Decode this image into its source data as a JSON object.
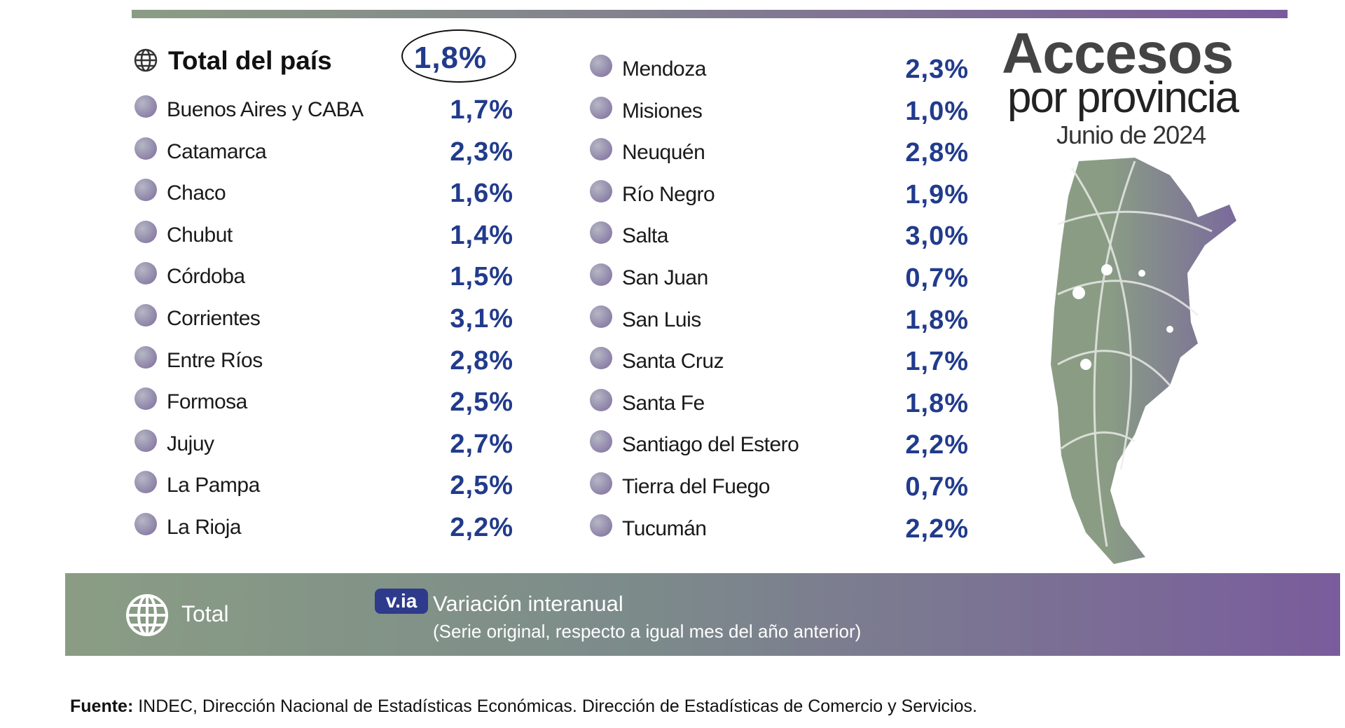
{
  "header": {
    "title": "Accesos",
    "subtitle": "por provincia",
    "date": "Junio de 2024"
  },
  "total": {
    "label": "Total del país",
    "value": "1,8%"
  },
  "table": {
    "rows": [
      [
        "Buenos Aires y CABA",
        "1,7%"
      ],
      [
        "Catamarca",
        "2,3%"
      ],
      [
        "Chaco",
        "1,6%"
      ],
      [
        "Chubut",
        "1,4%"
      ],
      [
        "Córdoba",
        "1,5%"
      ],
      [
        "Corrientes",
        "3,1%"
      ],
      [
        "Entre Ríos",
        "2,8%"
      ],
      [
        "Formosa",
        "2,5%"
      ],
      [
        "Jujuy",
        "2,7%"
      ],
      [
        "La Pampa",
        "2,5%"
      ],
      [
        "La Rioja",
        "2,2%"
      ],
      [
        "Mendoza",
        "2,3%"
      ],
      [
        "Misiones",
        "1,0%"
      ],
      [
        "Neuquén",
        "2,8%"
      ],
      [
        "Río Negro",
        "1,9%"
      ],
      [
        "Salta",
        "3,0%"
      ],
      [
        "San Juan",
        "0,7%"
      ],
      [
        "San Luis",
        "1,8%"
      ],
      [
        "Santa Cruz",
        "1,7%"
      ],
      [
        "Santa Fe",
        "1,8%"
      ],
      [
        "Santiago del Estero",
        "2,2%"
      ],
      [
        "Tierra del Fuego",
        "0,7%"
      ],
      [
        "Tucumán",
        "2,2%"
      ]
    ]
  },
  "legend": {
    "total": "Total",
    "badge": "v.ia",
    "title": "Variación interanual",
    "note": "(Serie original, respecto a igual mes del año anterior)"
  },
  "footer": {
    "label": "Fuente:",
    "text": "INDEC, Dirección Nacional de Estadísticas Económicas. Dirección de Estadísticas de Comercio y Servicios."
  }
}
